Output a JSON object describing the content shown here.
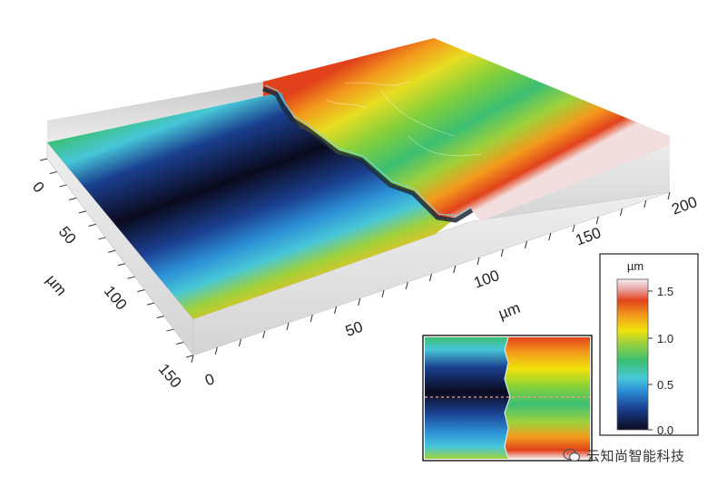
{
  "surface": {
    "x_unit": "µm",
    "y_unit": "µm",
    "x_ticks": [
      "0",
      "50",
      "100",
      "150",
      "200"
    ],
    "y_ticks": [
      "0",
      "50",
      "100",
      "150"
    ]
  },
  "colorbar": {
    "unit": "µm",
    "ticks": [
      "1.5",
      "1.0",
      "0.5",
      "0.0"
    ]
  },
  "colors": {
    "colormap": [
      "#0a0a1e",
      "#1a3f8f",
      "#2c8fd6",
      "#47c7d8",
      "#3cbf72",
      "#9fd13a",
      "#f0e20a",
      "#f39a1c",
      "#e2421b",
      "#f2f2f2"
    ]
  },
  "watermark": {
    "icon": "wechat-icon",
    "text": "云知尚智能科技"
  }
}
